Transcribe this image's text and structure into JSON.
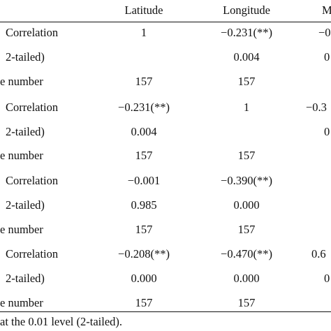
{
  "columns": [
    "Latitude",
    "Longitude",
    "M"
  ],
  "rows": [
    {
      "label": "Correlation",
      "lat": "1",
      "lon": "−0.231(**)",
      "m": "−0"
    },
    {
      "label": "2-tailed)",
      "lat": "",
      "lon": "0.004",
      "m": "0"
    },
    {
      "label": "e number",
      "lat": "157",
      "lon": "157",
      "m": ""
    },
    {
      "label": "Correlation",
      "lat": "−0.231(**)",
      "lon": "1",
      "m": "−0.3"
    },
    {
      "label": "2-tailed)",
      "lat": "0.004",
      "lon": "",
      "m": "0"
    },
    {
      "label": "e number",
      "lat": "157",
      "lon": "157",
      "m": ""
    },
    {
      "label": "Correlation",
      "lat": "−0.001",
      "lon": "−0.390(**)",
      "m": ""
    },
    {
      "label": "2-tailed)",
      "lat": "0.985",
      "lon": "0.000",
      "m": ""
    },
    {
      "label": "e number",
      "lat": "157",
      "lon": "157",
      "m": ""
    },
    {
      "label": "Correlation",
      "lat": "−0.208(**)",
      "lon": "−0.470(**)",
      "m": "0.6"
    },
    {
      "label": "2-tailed)",
      "lat": "0.000",
      "lon": "0.000",
      "m": "0"
    },
    {
      "label": "e number",
      "lat": "157",
      "lon": "157",
      "m": ""
    }
  ],
  "footnote": "at the 0.01 level (2-tailed)."
}
